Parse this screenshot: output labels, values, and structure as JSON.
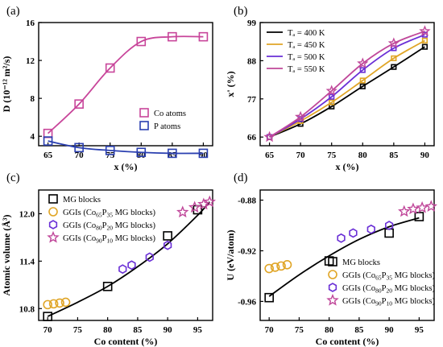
{
  "chart_data": [
    {
      "panel": "(a)",
      "type": "line",
      "xlabel": "x (%)",
      "ylabel": "D (10⁻¹² m²/s)",
      "xlim": [
        63.5,
        91.5
      ],
      "ylim": [
        3.0,
        16.0
      ],
      "xticks": [
        65,
        70,
        75,
        80,
        85,
        90
      ],
      "yticks": [
        4,
        8,
        12,
        16
      ],
      "legend_position": "center-right",
      "series": [
        {
          "name": "Co atoms",
          "color": "#c8459a",
          "marker": "square",
          "x": [
            65,
            70,
            75,
            80,
            85,
            90
          ],
          "y": [
            4.3,
            7.4,
            11.2,
            14.0,
            14.5,
            14.5
          ]
        },
        {
          "name": "P atoms",
          "color": "#2a3fb0",
          "marker": "square",
          "x": [
            65,
            70,
            75,
            80,
            85,
            90
          ],
          "y": [
            3.5,
            2.8,
            2.5,
            2.3,
            2.2,
            2.2
          ]
        }
      ]
    },
    {
      "panel": "(b)",
      "type": "line",
      "xlabel": "x (%)",
      "ylabel": "x' (%)",
      "xlim": [
        63.5,
        91.5
      ],
      "ylim": [
        63.5,
        99.0
      ],
      "xticks": [
        65,
        70,
        75,
        80,
        85,
        90
      ],
      "yticks": [
        66,
        77,
        88,
        99
      ],
      "legend_position": "top-left",
      "series": [
        {
          "name": "Tₐ = 400 K",
          "color": "#000000",
          "x": [
            65,
            70,
            75,
            80,
            85,
            90
          ],
          "y": [
            66.0,
            69.8,
            74.8,
            80.6,
            86.2,
            92.0
          ]
        },
        {
          "name": "Tₐ = 450 K",
          "color": "#e0a526",
          "x": [
            65,
            70,
            75,
            80,
            85,
            90
          ],
          "y": [
            66.0,
            70.6,
            76.0,
            82.3,
            88.7,
            93.8
          ]
        },
        {
          "name": "Tₐ = 500 K",
          "color": "#6a2fd6",
          "x": [
            65,
            70,
            75,
            80,
            85,
            90
          ],
          "y": [
            66.0,
            71.2,
            77.6,
            85.3,
            91.6,
            95.5
          ]
        },
        {
          "name": "Tₐ = 550 K",
          "color": "#c0489a",
          "x": [
            65,
            70,
            75,
            80,
            85,
            90
          ],
          "y": [
            66.0,
            71.8,
            79.3,
            87.2,
            93.0,
            96.5
          ]
        }
      ]
    },
    {
      "panel": "(c)",
      "type": "scatter",
      "xlabel": "Co content (%)",
      "ylabel": "Atomic volume (Å³)",
      "xlim": [
        68.5,
        97.5
      ],
      "ylim": [
        10.65,
        12.3
      ],
      "xticks": [
        70,
        75,
        80,
        85,
        90,
        95
      ],
      "yticks": [
        10.8,
        11.4,
        12.0
      ],
      "legend_position": "top-left",
      "fit_line": {
        "x": [
          70,
          75,
          80,
          85,
          90,
          95,
          97
        ],
        "y": [
          10.7,
          10.88,
          11.08,
          11.33,
          11.62,
          11.98,
          12.15
        ]
      },
      "series": [
        {
          "name": "MG blocks",
          "color": "#000000",
          "marker": "square",
          "x": [
            70,
            80,
            90,
            95
          ],
          "y": [
            10.7,
            11.08,
            11.72,
            12.05
          ]
        },
        {
          "name_prefix": "GGIs (Co",
          "name_sub1": "65",
          "name_mid": "P",
          "name_sub2": "35",
          "name_suffix": " MG blocks)",
          "color": "#e0a526",
          "marker": "circle",
          "x": [
            70,
            71,
            72,
            73
          ],
          "y": [
            10.85,
            10.86,
            10.87,
            10.88
          ]
        },
        {
          "name_prefix": "GGIs (Co",
          "name_sub1": "80",
          "name_mid": "P",
          "name_sub2": "20",
          "name_suffix": " MG blocks)",
          "color": "#6a2fd6",
          "marker": "hexagon",
          "x": [
            82.5,
            84,
            87,
            90
          ],
          "y": [
            11.3,
            11.35,
            11.45,
            11.6
          ]
        },
        {
          "name_prefix": "GGIs (Co",
          "name_sub1": "90",
          "name_mid": "P",
          "name_sub2": "10",
          "name_suffix": " MG blocks)",
          "color": "#c0489a",
          "marker": "star",
          "x": [
            92.5,
            94.5,
            96,
            97
          ],
          "y": [
            12.02,
            12.08,
            12.12,
            12.15
          ]
        }
      ]
    },
    {
      "panel": "(d)",
      "type": "scatter",
      "xlabel": "Co content (%)",
      "ylabel": "U (eV/atom)",
      "xlim": [
        68.5,
        97.5
      ],
      "ylim": [
        -0.975,
        -0.872
      ],
      "xticks": [
        70,
        75,
        80,
        85,
        90,
        95
      ],
      "yticks": [
        -0.88,
        -0.92,
        -0.96
      ],
      "legend_position": "bottom-right",
      "fit_line": {
        "x": [
          70,
          75,
          80,
          85,
          90,
          95
        ],
        "y": [
          -0.956,
          -0.939,
          -0.924,
          -0.911,
          -0.901,
          -0.894
        ]
      },
      "series": [
        {
          "name": "MG blocks",
          "color": "#000000",
          "marker": "square",
          "x": [
            70,
            80,
            90,
            95
          ],
          "y": [
            -0.957,
            -0.928,
            -0.906,
            -0.893
          ]
        },
        {
          "name_prefix": "GGIs (Co",
          "name_sub1": "65",
          "name_mid": "P",
          "name_sub2": "35",
          "name_suffix": " MG blocks)",
          "color": "#e0a526",
          "marker": "circle",
          "x": [
            70,
            71,
            72,
            73
          ],
          "y": [
            -0.934,
            -0.933,
            -0.932,
            -0.931
          ]
        },
        {
          "name_prefix": "GGIs (Co",
          "name_sub1": "80",
          "name_mid": "P",
          "name_sub2": "20",
          "name_suffix": " MG blocks)",
          "color": "#6a2fd6",
          "marker": "hexagon",
          "x": [
            82,
            84,
            87,
            90
          ],
          "y": [
            -0.91,
            -0.906,
            -0.903,
            -0.9
          ]
        },
        {
          "name_prefix": "GGIs (Co",
          "name_sub1": "90",
          "name_mid": "P",
          "name_sub2": "10",
          "name_suffix": " MG blocks)",
          "color": "#c0489a",
          "marker": "star",
          "x": [
            92.5,
            94,
            95.5,
            97
          ],
          "y": [
            -0.889,
            -0.887,
            -0.886,
            -0.885
          ]
        }
      ]
    }
  ]
}
